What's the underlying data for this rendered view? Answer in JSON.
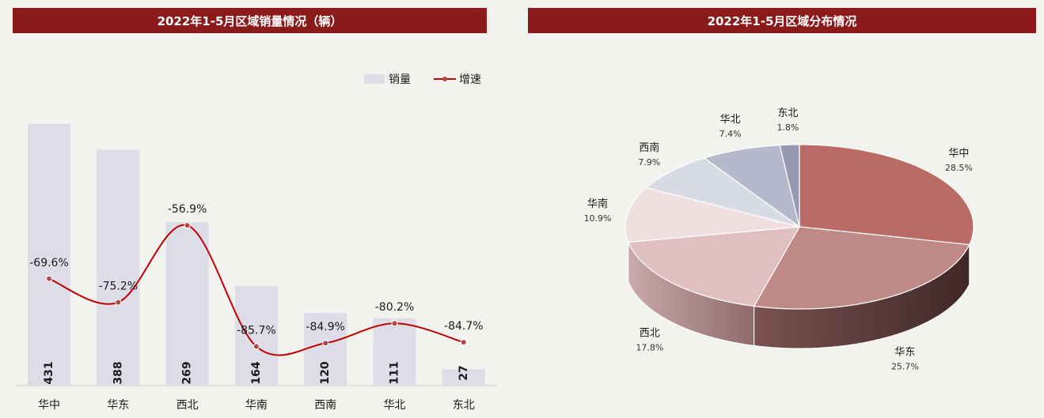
{
  "left_title": "2022年1-5月区域销量情况（辆）",
  "right_title": "2022年1-5月区域分布情况",
  "chart_data": [
    {
      "type": "bar",
      "title": "2022年1-5月区域销量情况（辆）",
      "categories": [
        "华中",
        "华东",
        "西北",
        "华南",
        "西南",
        "华北",
        "东北"
      ],
      "series": [
        {
          "name": "销量",
          "type": "bar",
          "values": [
            431,
            388,
            269,
            164,
            120,
            111,
            27
          ],
          "color": "#dcdde6"
        },
        {
          "name": "增速",
          "type": "line",
          "values": [
            -69.6,
            -75.2,
            -56.9,
            -85.7,
            -84.9,
            -80.2,
            -84.7
          ],
          "labels": [
            "-69.6%",
            "-75.2%",
            "-56.9%",
            "-85.7%",
            "-84.9%",
            "-80.2%",
            "-84.7%"
          ],
          "color": "#c00000"
        }
      ],
      "ylim_bar": [
        0,
        450
      ],
      "ylim_line": [
        -95,
        -30
      ],
      "legend": "top-right"
    },
    {
      "type": "pie",
      "title": "2022年1-5月区域分布情况",
      "slices": [
        {
          "label": "华中",
          "value": 28.5,
          "text": "28.5%",
          "color": "#bb6b65"
        },
        {
          "label": "华东",
          "value": 25.7,
          "text": "25.7%",
          "color": "#bf8a85"
        },
        {
          "label": "西北",
          "value": 17.8,
          "text": "17.8%",
          "color": "#e0bfc0"
        },
        {
          "label": "华南",
          "value": 10.9,
          "text": "10.9%",
          "color": "#efdfe0"
        },
        {
          "label": "西南",
          "value": 7.9,
          "text": "7.9%",
          "color": "#d9dbe4"
        },
        {
          "label": "华北",
          "value": 7.4,
          "text": "7.4%",
          "color": "#b6b8cc"
        },
        {
          "label": "东北",
          "value": 1.8,
          "text": "1.8%",
          "color": "#9799b3"
        }
      ]
    }
  ]
}
